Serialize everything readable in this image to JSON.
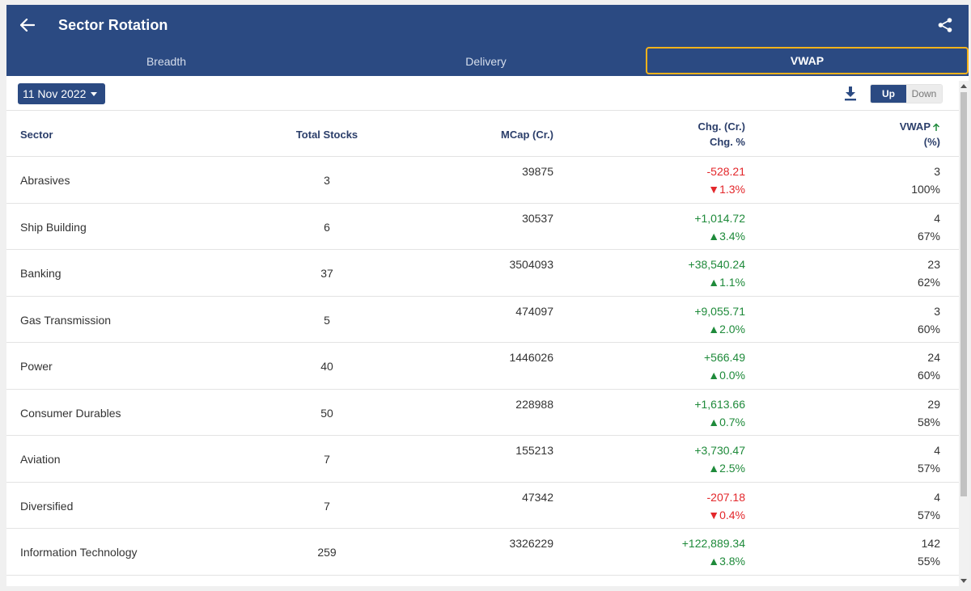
{
  "header": {
    "title": "Sector Rotation",
    "tabs": [
      "Breadth",
      "Delivery",
      "VWAP"
    ],
    "active_tab": "VWAP"
  },
  "toolbar": {
    "date": "11 Nov 2022",
    "toggle_up": "Up",
    "toggle_down": "Down"
  },
  "columns": {
    "sector": "Sector",
    "total": "Total Stocks",
    "mcap": "MCap (Cr.)",
    "chg": "Chg. (Cr.)",
    "chgp": "Chg. %",
    "vwap": "VWAP",
    "vwapp": "(%)"
  },
  "rows": [
    {
      "sector": "Abrasives",
      "total": "3",
      "mcap": "39875",
      "chg": "-528.21",
      "chgp": "▼1.3%",
      "dir": "neg",
      "vw": "3",
      "vwp": "100%"
    },
    {
      "sector": "Ship Building",
      "total": "6",
      "mcap": "30537",
      "chg": "+1,014.72",
      "chgp": "▲3.4%",
      "dir": "pos",
      "vw": "4",
      "vwp": "67%"
    },
    {
      "sector": "Banking",
      "total": "37",
      "mcap": "3504093",
      "chg": "+38,540.24",
      "chgp": "▲1.1%",
      "dir": "pos",
      "vw": "23",
      "vwp": "62%"
    },
    {
      "sector": "Gas Transmission",
      "total": "5",
      "mcap": "474097",
      "chg": "+9,055.71",
      "chgp": "▲2.0%",
      "dir": "pos",
      "vw": "3",
      "vwp": "60%"
    },
    {
      "sector": "Power",
      "total": "40",
      "mcap": "1446026",
      "chg": "+566.49",
      "chgp": "▲0.0%",
      "dir": "pos",
      "vw": "24",
      "vwp": "60%"
    },
    {
      "sector": "Consumer Durables",
      "total": "50",
      "mcap": "228988",
      "chg": "+1,613.66",
      "chgp": "▲0.7%",
      "dir": "pos",
      "vw": "29",
      "vwp": "58%"
    },
    {
      "sector": "Aviation",
      "total": "7",
      "mcap": "155213",
      "chg": "+3,730.47",
      "chgp": "▲2.5%",
      "dir": "pos",
      "vw": "4",
      "vwp": "57%"
    },
    {
      "sector": "Diversified",
      "total": "7",
      "mcap": "47342",
      "chg": "-207.18",
      "chgp": "▼0.4%",
      "dir": "neg",
      "vw": "4",
      "vwp": "57%"
    },
    {
      "sector": "Information Technology",
      "total": "259",
      "mcap": "3326229",
      "chg": "+122,889.34",
      "chgp": "▲3.8%",
      "dir": "pos",
      "vw": "142",
      "vwp": "55%"
    }
  ],
  "colors": {
    "header": "#2b4a82",
    "positive": "#1e8a3a",
    "negative": "#e3272b",
    "highlight": "#f5b21b"
  }
}
